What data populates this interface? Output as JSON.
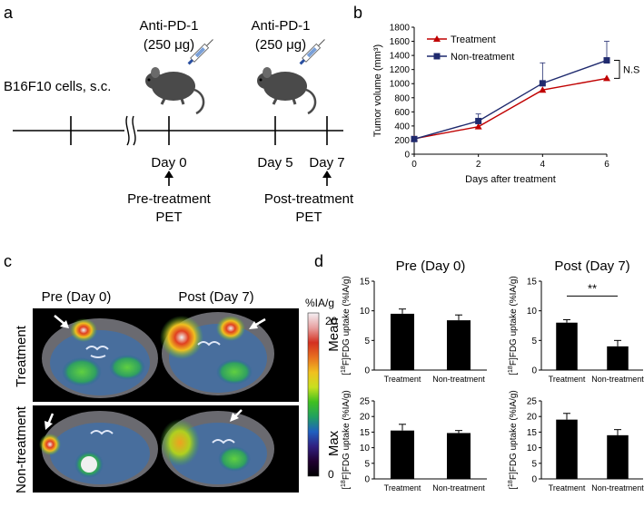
{
  "panels": {
    "a": "a",
    "b": "b",
    "c": "c",
    "d": "d"
  },
  "timeline": {
    "cells_label": "B16F10 cells, s.c.",
    "dose1": {
      "drug": "Anti-PD-1",
      "amount": "(250 μg)"
    },
    "dose2": {
      "drug": "Anti-PD-1",
      "amount": "(250 μg)"
    },
    "day0": "Day 0",
    "day5": "Day 5",
    "day7": "Day 7",
    "pre_pet": [
      "Pre-treatment",
      "PET"
    ],
    "post_pet": [
      "Post-treatment",
      "PET"
    ],
    "colors": {
      "line": "#000000",
      "mouse": "#4a4a4a",
      "syringe_plunger": "#2a4fa0"
    }
  },
  "chart_data": [
    {
      "id": "tumor-volume",
      "type": "line",
      "title": "",
      "xlabel": "Days after treatment",
      "ylabel": "Tumor volume (mm³)",
      "x": [
        0,
        2,
        4,
        6
      ],
      "xticks": [
        "0",
        "2",
        "4",
        "6"
      ],
      "xlim": [
        0,
        6
      ],
      "yticks": [
        "0",
        "200",
        "400",
        "600",
        "800",
        "1000",
        "1200",
        "1400",
        "1600",
        "1800"
      ],
      "ylim": [
        0,
        1800
      ],
      "series": [
        {
          "name": "Treatment",
          "values": [
            220,
            390,
            910,
            1075
          ],
          "errors": [
            0,
            0,
            0,
            0
          ],
          "color": "#c00000",
          "marker": "triangle"
        },
        {
          "name": "Non-treatment",
          "values": [
            215,
            470,
            1005,
            1330
          ],
          "errors": [
            0,
            100,
            290,
            270
          ],
          "color": "#1f2a6e",
          "marker": "square"
        }
      ],
      "annotation": "N.S"
    },
    {
      "id": "mean-pre",
      "type": "bar",
      "title": "Pre (Day 0)",
      "ylabel": "[18F]FDG uptake (%IA/g)",
      "categories": [
        "Treatment",
        "Non-treatment"
      ],
      "values": [
        9.5,
        8.4
      ],
      "errors": [
        0.8,
        0.9
      ],
      "yticks": [
        "0",
        "5",
        "10",
        "15"
      ],
      "ylim": [
        0,
        15
      ]
    },
    {
      "id": "mean-post",
      "type": "bar",
      "title": "Post (Day 7)",
      "ylabel": "[18F]FDG uptake (%IA/g)",
      "categories": [
        "Treatment",
        "Non-treatment"
      ],
      "values": [
        8.0,
        4.0
      ],
      "errors": [
        0.5,
        1.0
      ],
      "yticks": [
        "0",
        "5",
        "10",
        "15"
      ],
      "ylim": [
        0,
        15
      ],
      "annotation": "**"
    },
    {
      "id": "max-pre",
      "type": "bar",
      "title": "",
      "ylabel": "[18F]FDG uptake (%IA/g)",
      "categories": [
        "Treatment",
        "Non-treatment"
      ],
      "values": [
        15.5,
        14.7
      ],
      "errors": [
        2.0,
        0.8
      ],
      "yticks": [
        "0",
        "5",
        "10",
        "15",
        "20",
        "25"
      ],
      "ylim": [
        0,
        25
      ]
    },
    {
      "id": "max-post",
      "type": "bar",
      "title": "",
      "ylabel": "[18F]FDG uptake (%IA/g)",
      "categories": [
        "Treatment",
        "Non-treatment"
      ],
      "values": [
        19.0,
        14.0
      ],
      "errors": [
        2.0,
        1.8
      ],
      "yticks": [
        "0",
        "5",
        "10",
        "15",
        "20",
        "25"
      ],
      "ylim": [
        0,
        25
      ]
    }
  ],
  "row_labels_d": {
    "mean": "Mean",
    "max": "Max"
  },
  "pet": {
    "col_pre": "Pre (Day 0)",
    "col_post": "Post  (Day 7)",
    "row_treatment": "Treatment",
    "row_nontreatment": "Non-treatment",
    "colorbar_unit": "%IA/g",
    "colorbar_max": "20",
    "colorbar_min": "0",
    "colorbar_colors": [
      "#f4f0f4",
      "#e8a0a0",
      "#d43020",
      "#e87020",
      "#f0c020",
      "#c8e020",
      "#40c020",
      "#20a060",
      "#2060c0",
      "#302080",
      "#200030",
      "#000000"
    ]
  }
}
